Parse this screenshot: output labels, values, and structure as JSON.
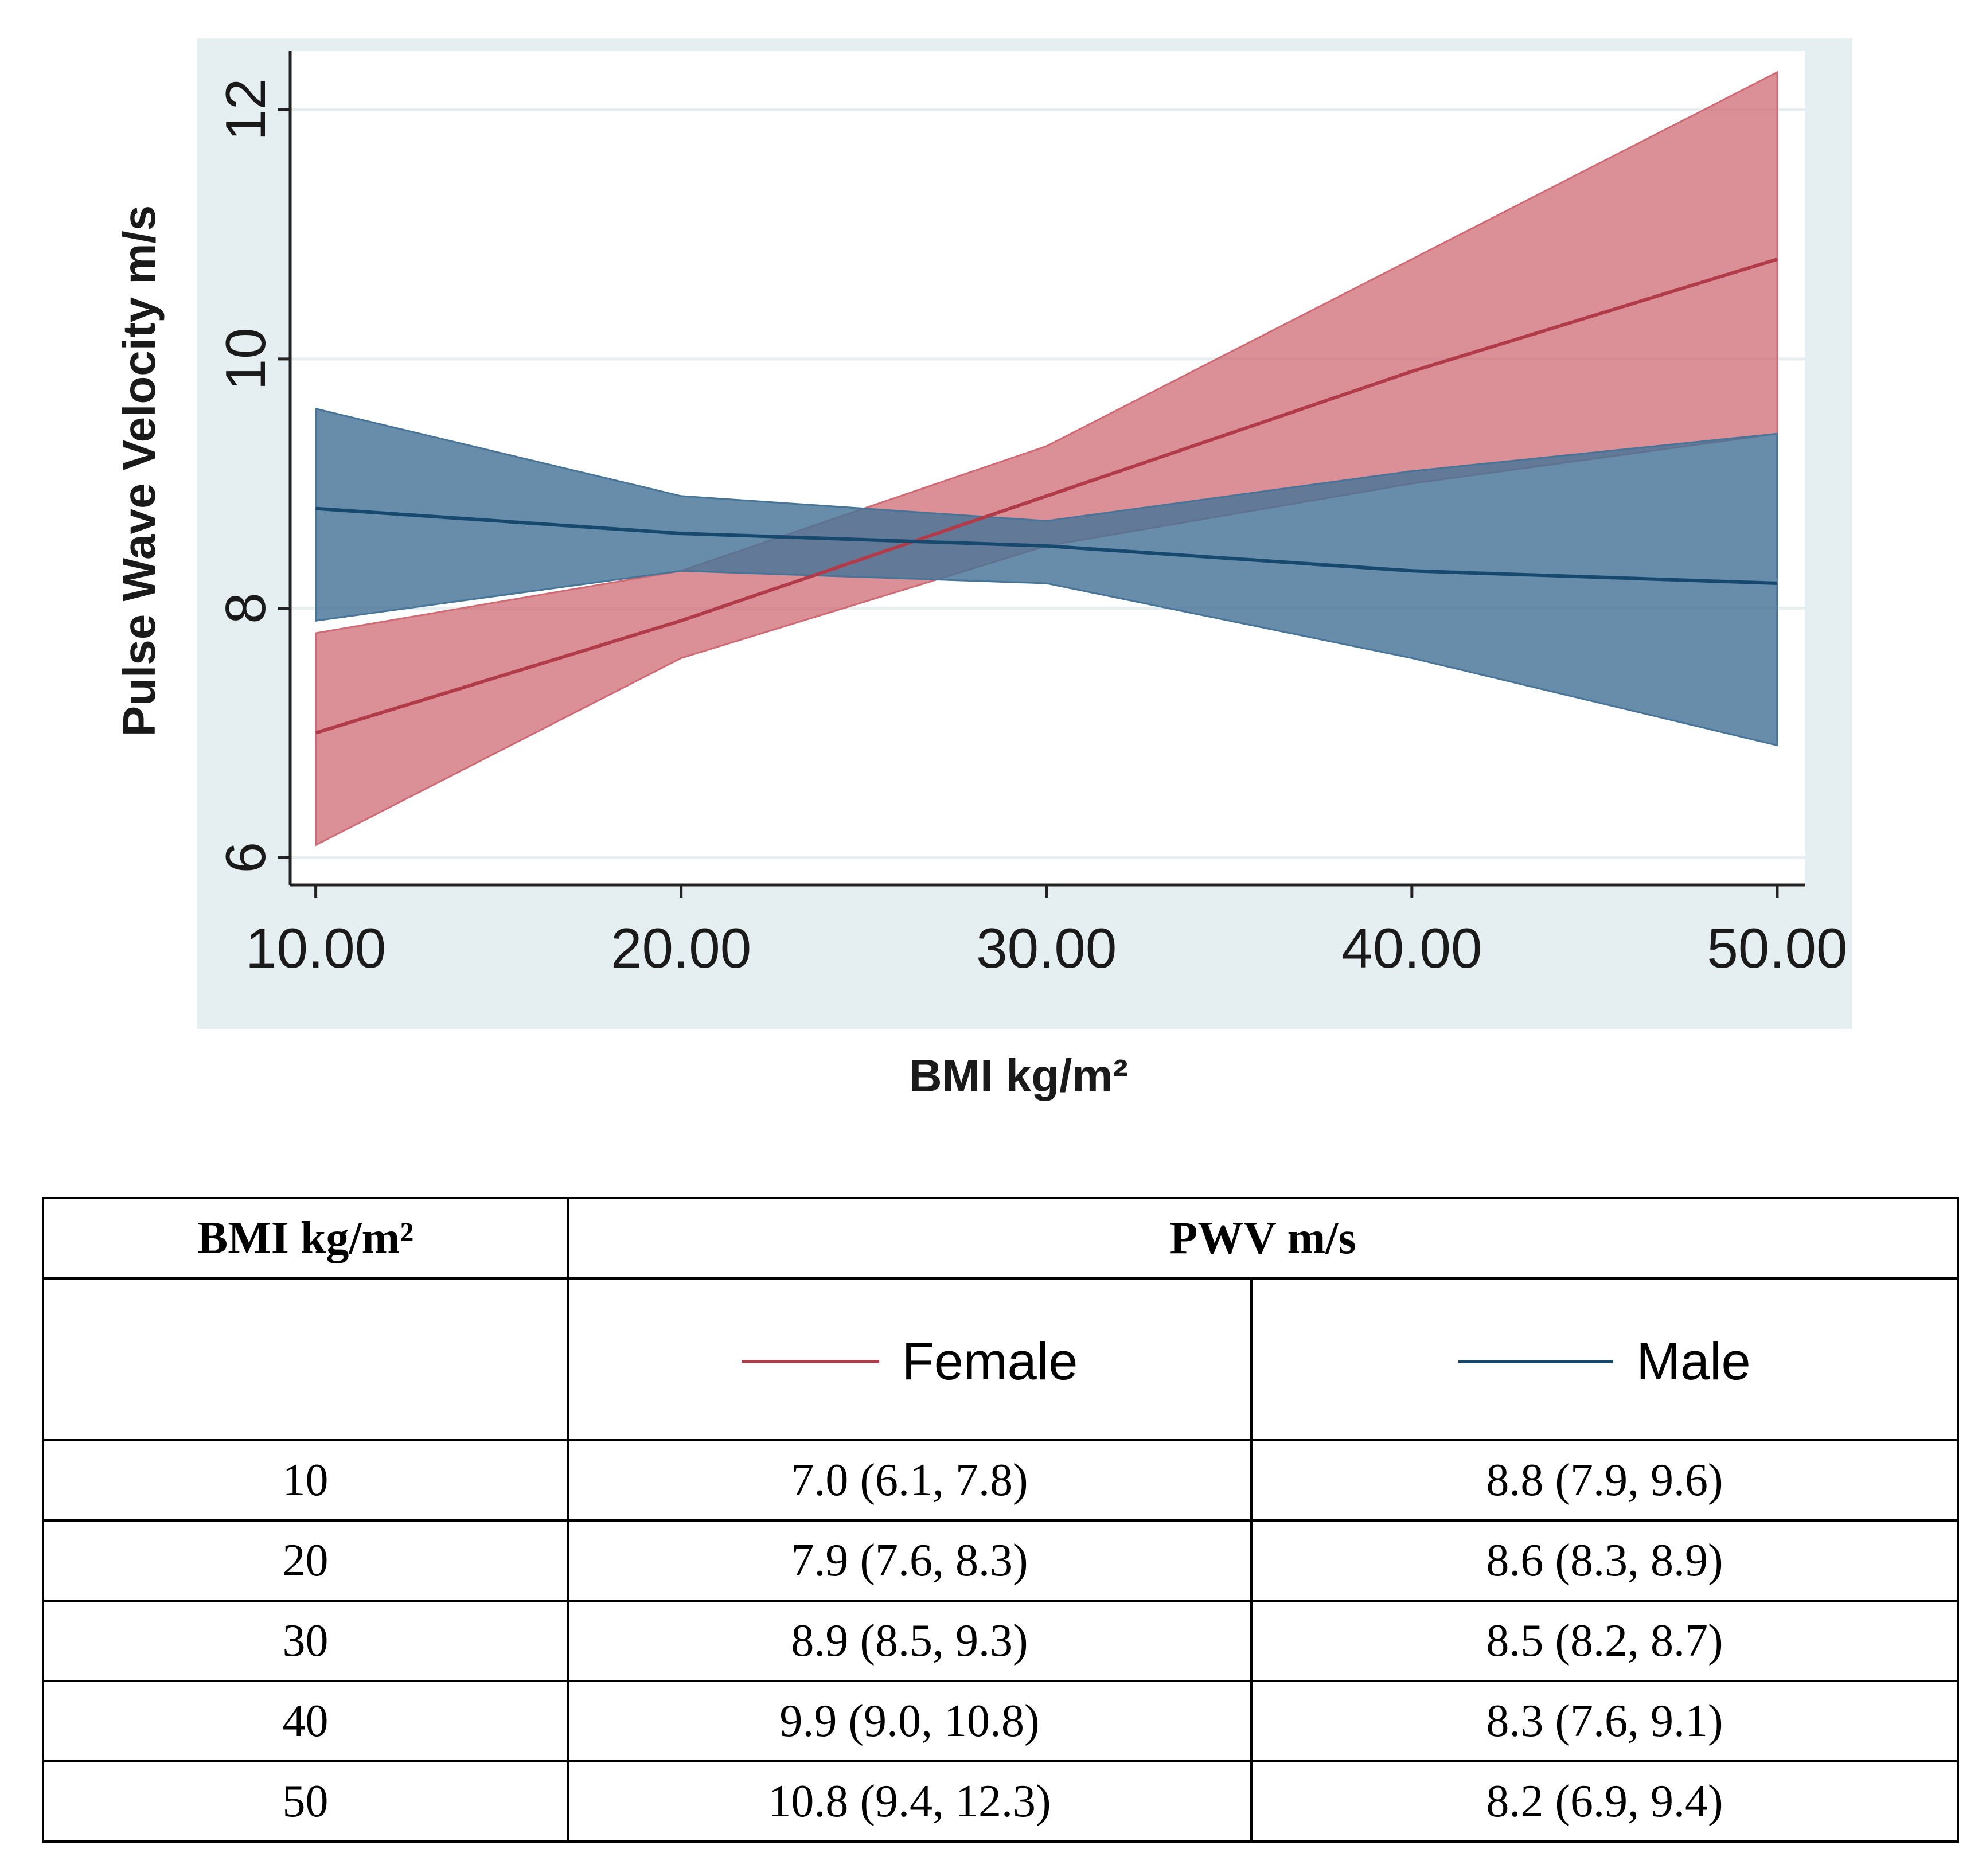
{
  "chart_data": {
    "type": "band-line",
    "x_label": "BMI kg/m²",
    "y_label": "Pulse Wave Velocity m/s",
    "x": [
      10,
      20,
      30,
      40,
      50
    ],
    "series": [
      {
        "name": "Female",
        "color": "#b23b4a",
        "band_color": "#cf6a74",
        "values": [
          7.0,
          7.9,
          8.9,
          9.9,
          10.8
        ],
        "lower": [
          6.1,
          7.6,
          8.5,
          9.0,
          9.4
        ],
        "upper": [
          7.8,
          8.3,
          9.3,
          10.8,
          12.3
        ]
      },
      {
        "name": "Male",
        "color": "#17486e",
        "band_color": "#477497",
        "values": [
          8.8,
          8.6,
          8.5,
          8.3,
          8.2
        ],
        "lower": [
          7.9,
          8.3,
          8.2,
          7.6,
          6.9
        ],
        "upper": [
          9.6,
          8.9,
          8.7,
          9.1,
          9.4
        ]
      }
    ],
    "xlim": [
      9.3,
      50.77
    ],
    "xticks": [
      {
        "value": 10,
        "label": "10.00"
      },
      {
        "value": 20,
        "label": "20.00"
      },
      {
        "value": 30,
        "label": "30.00"
      },
      {
        "value": 40,
        "label": "40.00"
      },
      {
        "value": 50,
        "label": "50.00"
      }
    ],
    "ylim": [
      5.78,
      12.47
    ],
    "yticks": [
      6,
      8,
      10,
      12
    ],
    "grid": true
  },
  "table": {
    "header": [
      "BMI kg/m²",
      "PWV m/s"
    ],
    "rows": [
      [
        "10",
        "7.0 (6.1, 7.8)",
        "8.8 (7.9, 9.6)"
      ],
      [
        "20",
        "7.9 (7.6, 8.3)",
        "8.6 (8.3, 8.9)"
      ],
      [
        "30",
        "8.9 (8.5, 9.3)",
        "8.5 (8.2, 8.7)"
      ],
      [
        "40",
        "9.9 (9.0, 10.8)",
        "8.3 (7.6, 9.1)"
      ],
      [
        "50",
        "10.8 (9.4, 12.3)",
        "8.2 (6.9, 9.4)"
      ]
    ]
  }
}
